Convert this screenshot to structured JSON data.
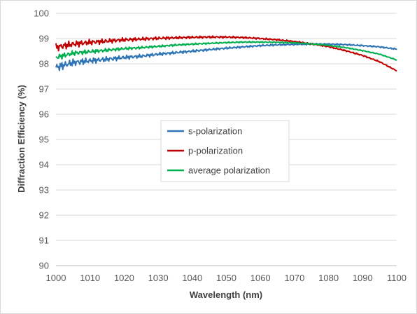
{
  "chart_data": {
    "type": "line",
    "title": "",
    "xlabel": "Wavelength (nm)",
    "ylabel": "Diffraction Efficiency (%)",
    "xlim": [
      1000,
      1100
    ],
    "ylim": [
      90,
      100
    ],
    "x_ticks": [
      1000,
      1010,
      1020,
      1030,
      1040,
      1050,
      1060,
      1070,
      1080,
      1090,
      1100
    ],
    "y_ticks": [
      90,
      91,
      92,
      93,
      94,
      95,
      96,
      97,
      98,
      99,
      100
    ],
    "grid": "horizontal",
    "legend_position": "center",
    "x": [
      1000,
      1005,
      1010,
      1015,
      1020,
      1025,
      1030,
      1035,
      1040,
      1045,
      1050,
      1055,
      1060,
      1065,
      1070,
      1075,
      1080,
      1085,
      1090,
      1095,
      1100
    ],
    "series": [
      {
        "name": "s-polarization",
        "color": "#2E75B6",
        "values": [
          97.85,
          98.05,
          98.12,
          98.18,
          98.25,
          98.3,
          98.38,
          98.44,
          98.5,
          98.56,
          98.62,
          98.67,
          98.72,
          98.75,
          98.77,
          98.78,
          98.78,
          98.76,
          98.72,
          98.67,
          98.58
        ]
      },
      {
        "name": "p-polarization",
        "color": "#C00000",
        "values": [
          98.65,
          98.78,
          98.85,
          98.9,
          98.95,
          98.98,
          99.01,
          99.03,
          99.05,
          99.06,
          99.06,
          99.04,
          99.0,
          98.95,
          98.88,
          98.79,
          98.68,
          98.52,
          98.33,
          98.08,
          97.72
        ]
      },
      {
        "name": "average polarization",
        "color": "#00B050",
        "values": [
          98.25,
          98.42,
          98.48,
          98.54,
          98.6,
          98.64,
          98.69,
          98.74,
          98.78,
          98.81,
          98.84,
          98.86,
          98.86,
          98.85,
          98.83,
          98.79,
          98.73,
          98.64,
          98.52,
          98.38,
          98.15
        ]
      }
    ]
  }
}
